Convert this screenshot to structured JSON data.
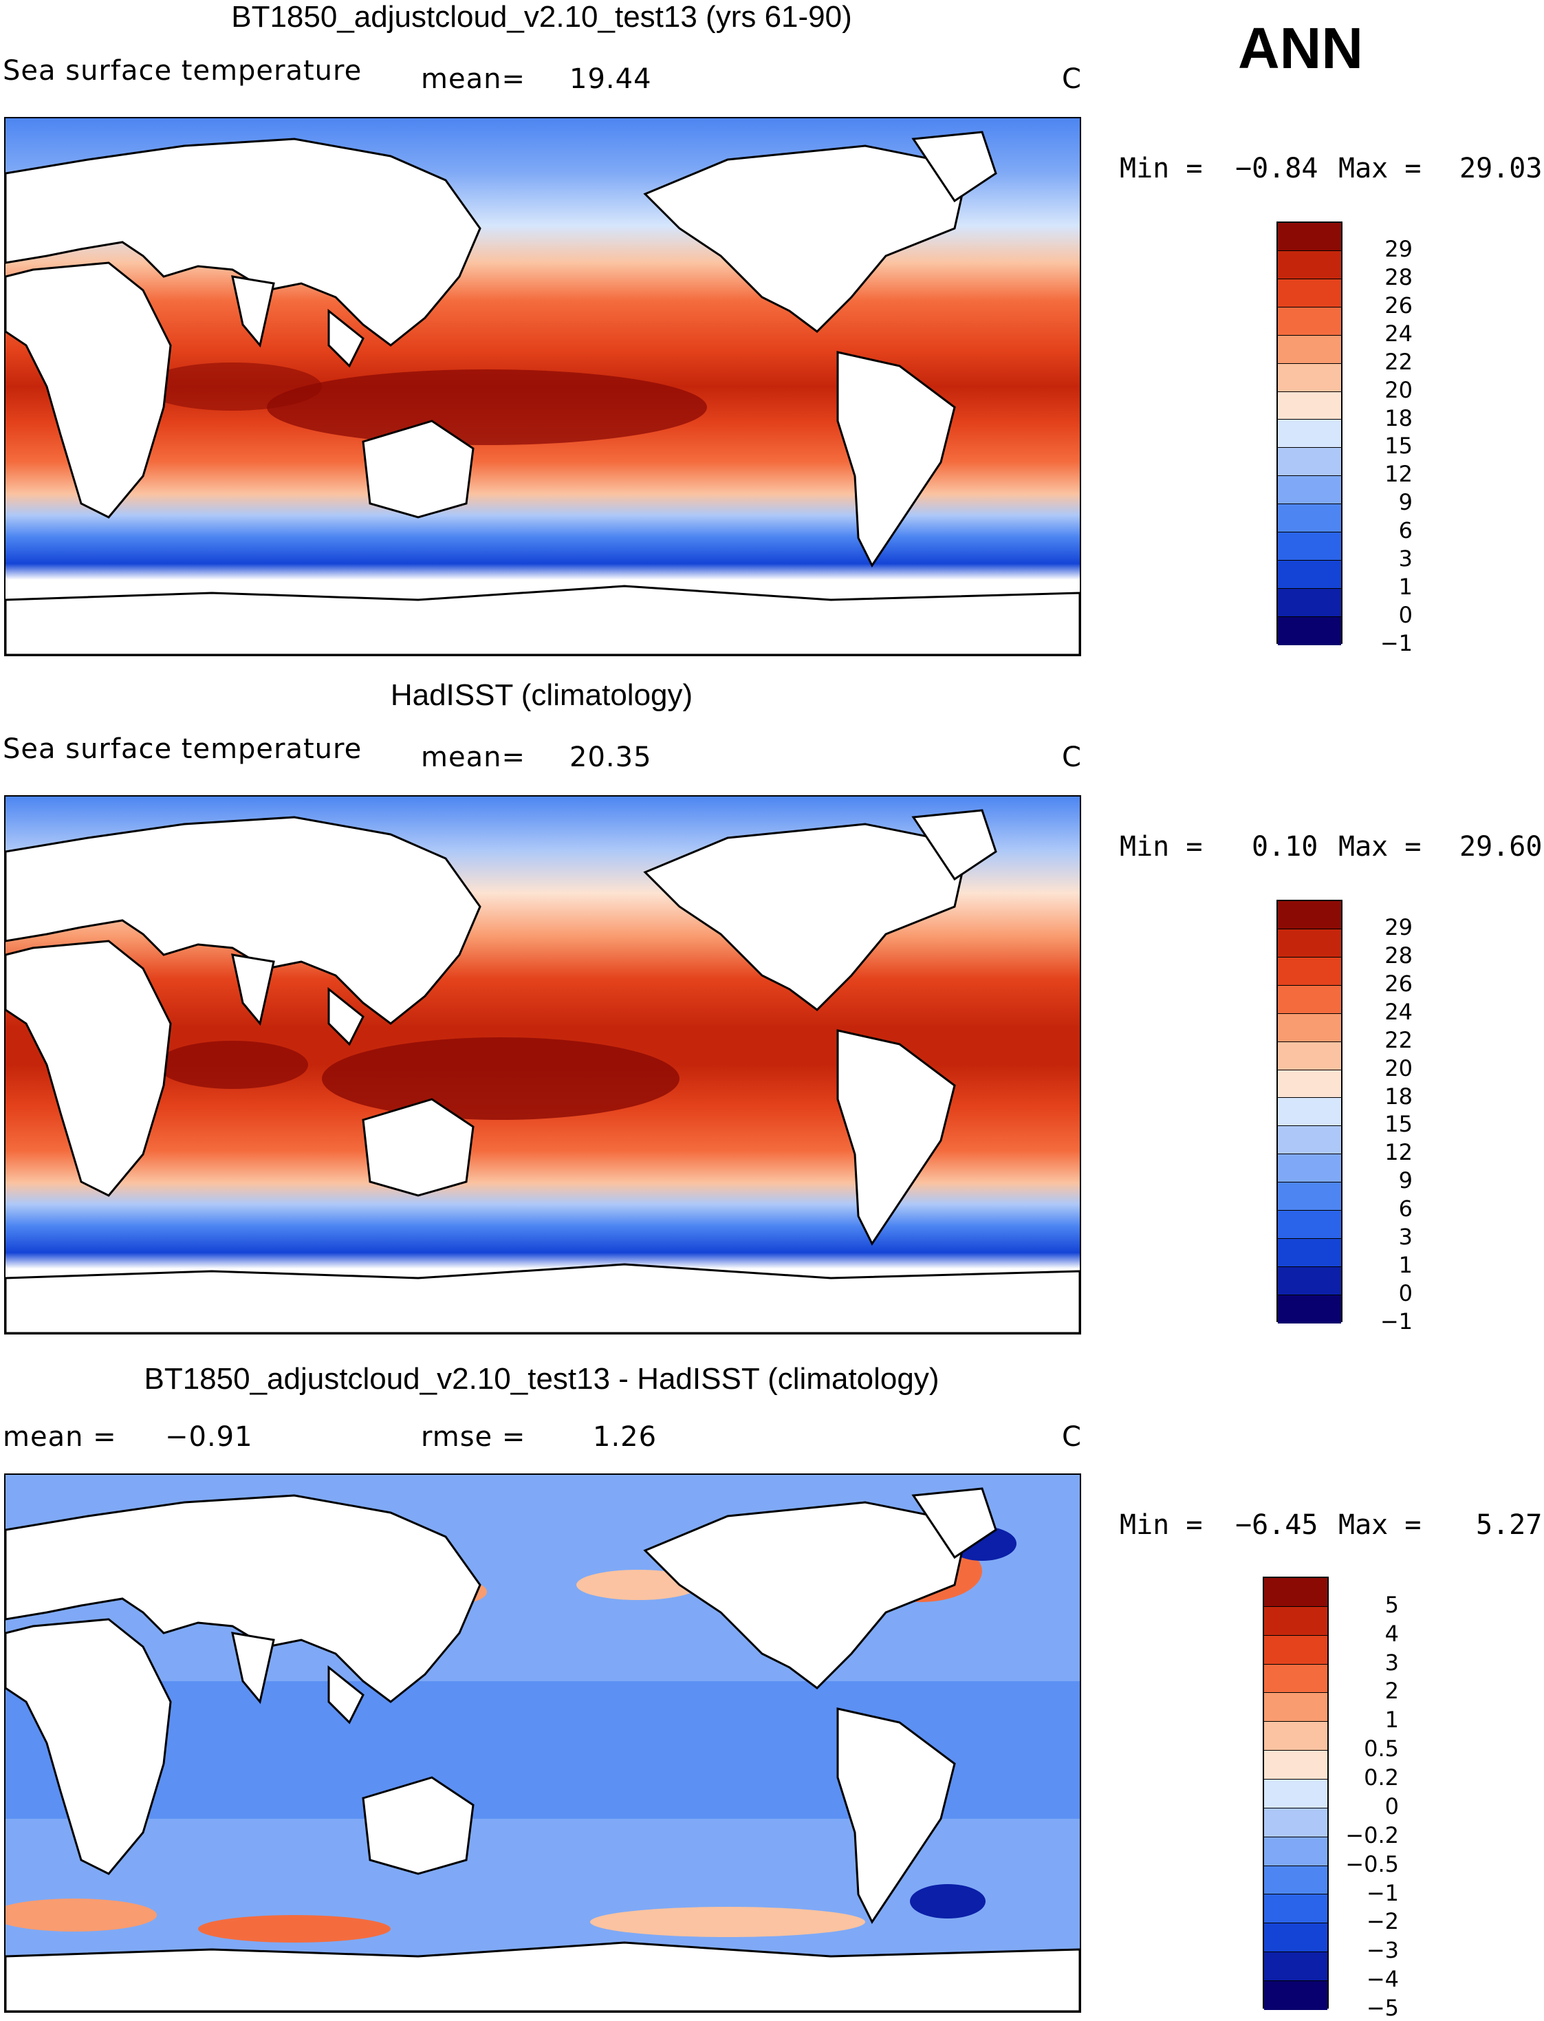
{
  "season": "ANN",
  "colors": {
    "abs_scale": [
      "#08006e",
      "#0b1fa8",
      "#1444d6",
      "#2a64ea",
      "#4d86f2",
      "#7fa9f6",
      "#adc8f8",
      "#d6e6fc",
      "#fde3d2",
      "#fbc3a1",
      "#f99c70",
      "#f46c3e",
      "#e4431c",
      "#c5260b",
      "#8c0a04"
    ],
    "diff_scale": [
      "#08006e",
      "#0b1fa8",
      "#1444d6",
      "#2a64ea",
      "#4d86f2",
      "#7fa9f6",
      "#adc8f8",
      "#d6e6fc",
      "#fde3d2",
      "#fbc3a1",
      "#f99c70",
      "#f46c3e",
      "#e4431c",
      "#c5260b",
      "#8c0a04"
    ]
  },
  "panels": [
    {
      "title": "BT1850_adjustcloud_v2.10_test13 (yrs 61-90)",
      "left_label": "Sea surface temperature",
      "mean_label": "mean=",
      "mean_value": "19.44",
      "units": "C",
      "min_label": "Min =",
      "min_value": "−0.84",
      "max_label": "Max =",
      "max_value": "29.03",
      "colorbar_labels": [
        "29",
        "28",
        "26",
        "24",
        "22",
        "20",
        "18",
        "15",
        "12",
        "9",
        "6",
        "3",
        "1",
        "0",
        "−1"
      ]
    },
    {
      "title": "HadISST (climatology)",
      "left_label": "Sea surface temperature",
      "mean_label": "mean=",
      "mean_value": "20.35",
      "units": "C",
      "min_label": "Min =",
      "min_value": "0.10",
      "max_label": "Max =",
      "max_value": "29.60",
      "colorbar_labels": [
        "29",
        "28",
        "26",
        "24",
        "22",
        "20",
        "18",
        "15",
        "12",
        "9",
        "6",
        "3",
        "1",
        "0",
        "−1"
      ]
    },
    {
      "title": "BT1850_adjustcloud_v2.10_test13 - HadISST (climatology)",
      "mean_label": "mean =",
      "mean_value": "−0.91",
      "rmse_label": "rmse =",
      "rmse_value": "1.26",
      "units": "C",
      "min_label": "Min =",
      "min_value": "−6.45",
      "max_label": "Max =",
      "max_value": "5.27",
      "colorbar_labels": [
        "5",
        "4",
        "3",
        "2",
        "1",
        "0.5",
        "0.2",
        "0",
        "−0.2",
        "−0.5",
        "−1",
        "−2",
        "−3",
        "−4",
        "−5"
      ]
    }
  ],
  "chart_data": [
    {
      "type": "heatmap",
      "title": "BT1850_adjustcloud_v2.10_test13 (yrs 61-90)",
      "variable": "Sea surface temperature",
      "units": "C",
      "mean": 19.44,
      "min": -0.84,
      "max": 29.03,
      "contour_levels": [
        29,
        28,
        26,
        24,
        22,
        20,
        18,
        15,
        12,
        9,
        6,
        3,
        1,
        0,
        -1
      ]
    },
    {
      "type": "heatmap",
      "title": "HadISST (climatology)",
      "variable": "Sea surface temperature",
      "units": "C",
      "mean": 20.35,
      "min": 0.1,
      "max": 29.6,
      "contour_levels": [
        29,
        28,
        26,
        24,
        22,
        20,
        18,
        15,
        12,
        9,
        6,
        3,
        1,
        0,
        -1
      ]
    },
    {
      "type": "heatmap",
      "title": "BT1850_adjustcloud_v2.10_test13 - HadISST (climatology)",
      "units": "C",
      "mean": -0.91,
      "rmse": 1.26,
      "min": -6.45,
      "max": 5.27,
      "contour_levels": [
        5,
        4,
        3,
        2,
        1,
        0.5,
        0.2,
        0,
        -0.2,
        -0.5,
        -1,
        -2,
        -3,
        -4,
        -5
      ]
    }
  ]
}
